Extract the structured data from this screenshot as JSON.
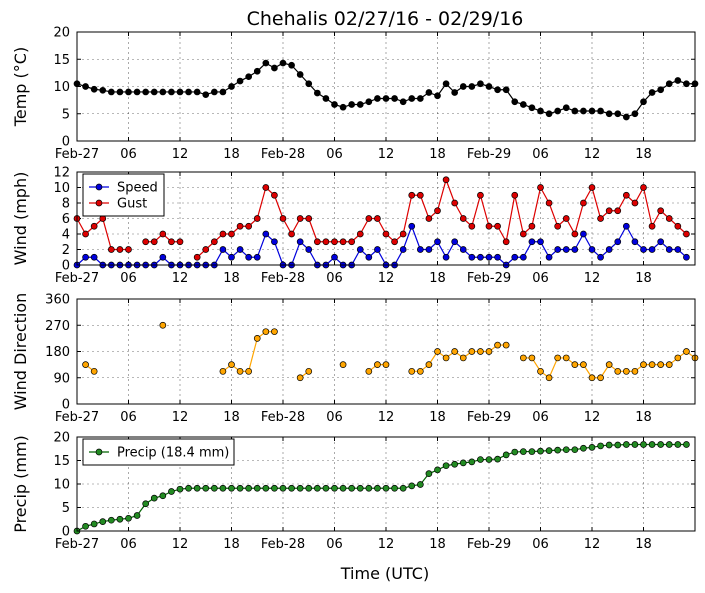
{
  "figure": {
    "title": "Chehalis 02/27/16 - 02/29/16",
    "xlabel": "Time (UTC)"
  },
  "chart_data": [
    {
      "id": "temp",
      "type": "line",
      "ylabel": "Temp (°C)",
      "ylim": [
        0,
        20
      ],
      "yticks": [
        0,
        5,
        10,
        15,
        20
      ],
      "grid": true,
      "legend": null,
      "x_hours_start": 0,
      "x_hours_step": 1,
      "xlim_hours": [
        0,
        72
      ],
      "xticks": [
        {
          "h": 0,
          "label": "Feb-27"
        },
        {
          "h": 6,
          "label": "06"
        },
        {
          "h": 12,
          "label": "12"
        },
        {
          "h": 18,
          "label": "18"
        },
        {
          "h": 24,
          "label": "Feb-28"
        },
        {
          "h": 30,
          "label": "06"
        },
        {
          "h": 36,
          "label": "12"
        },
        {
          "h": 42,
          "label": "18"
        },
        {
          "h": 48,
          "label": "Feb-29"
        },
        {
          "h": 54,
          "label": "06"
        },
        {
          "h": 60,
          "label": "12"
        },
        {
          "h": 66,
          "label": "18"
        }
      ],
      "series": [
        {
          "color": "#000000",
          "marker_fill": "#000000",
          "line": true,
          "values": [
            10.5,
            10,
            9.5,
            9.3,
            9,
            9,
            9,
            9,
            9,
            9,
            9,
            9,
            9,
            9,
            9,
            8.5,
            9,
            9,
            10,
            11,
            11.8,
            12.8,
            14.3,
            13.4,
            14.3,
            13.9,
            12.2,
            10.5,
            8.8,
            7.8,
            6.7,
            6.2,
            6.7,
            6.7,
            7.2,
            7.8,
            7.8,
            7.8,
            7.2,
            7.8,
            7.8,
            8.9,
            8.3,
            10.5,
            8.9,
            10,
            10,
            10.5,
            10,
            9.4,
            9.4,
            7.2,
            6.7,
            6.1,
            5.5,
            5,
            5.5,
            6.1,
            5.5,
            5.5,
            5.5,
            5.5,
            5,
            5,
            4.4,
            5,
            7.2,
            8.9,
            9.4,
            10.5,
            11.1,
            10.5,
            10.5
          ]
        }
      ]
    },
    {
      "id": "wind",
      "type": "line",
      "ylabel": "Wind (mph)",
      "ylim": [
        0,
        12
      ],
      "yticks": [
        0,
        2,
        4,
        6,
        8,
        10,
        12
      ],
      "grid": true,
      "legend": "top-left",
      "x_hours_start": 0,
      "x_hours_step": 1,
      "xlim_hours": [
        0,
        72
      ],
      "xticks": [
        {
          "h": 0,
          "label": "Feb-27"
        },
        {
          "h": 6,
          "label": "06"
        },
        {
          "h": 12,
          "label": "12"
        },
        {
          "h": 18,
          "label": "18"
        },
        {
          "h": 24,
          "label": "Feb-28"
        },
        {
          "h": 30,
          "label": "06"
        },
        {
          "h": 36,
          "label": "12"
        },
        {
          "h": 42,
          "label": "18"
        },
        {
          "h": 48,
          "label": "Feb-29"
        },
        {
          "h": 54,
          "label": "06"
        },
        {
          "h": 60,
          "label": "12"
        },
        {
          "h": 66,
          "label": "18"
        }
      ],
      "series": [
        {
          "name": "Speed",
          "color": "#0000dd",
          "marker_fill": "#0000dd",
          "line": true,
          "values": [
            0,
            1,
            1,
            0,
            0,
            0,
            0,
            0,
            0,
            0,
            1,
            0,
            0,
            0,
            0,
            0,
            0,
            2,
            1,
            2,
            1,
            1,
            4,
            3,
            0,
            0,
            3,
            2,
            0,
            0,
            1,
            0,
            0,
            2,
            1,
            2,
            0,
            0,
            2,
            5,
            2,
            2,
            3,
            1,
            3,
            2,
            1,
            1,
            1,
            1,
            0,
            1,
            1,
            3,
            3,
            1,
            2,
            2,
            2,
            4,
            2,
            1,
            2,
            3,
            5,
            3,
            2,
            2,
            3,
            2,
            2,
            1
          ]
        },
        {
          "name": "Gust",
          "color": "#dd0000",
          "marker_fill": "#dd0000",
          "line": true,
          "values": [
            6,
            4,
            5,
            6,
            2,
            2,
            2,
            null,
            3,
            3,
            4,
            3,
            3,
            null,
            1,
            2,
            3,
            4,
            4,
            5,
            5,
            6,
            10,
            9,
            6,
            4,
            6,
            6,
            3,
            3,
            3,
            3,
            3,
            4,
            6,
            6,
            4,
            3,
            4,
            9,
            9,
            6,
            7,
            11,
            8,
            6,
            5,
            9,
            5,
            5,
            3,
            9,
            4,
            5,
            10,
            8,
            5,
            6,
            4,
            8,
            10,
            6,
            7,
            7,
            9,
            8,
            10,
            5,
            7,
            6,
            5,
            4
          ]
        }
      ]
    },
    {
      "id": "direction",
      "type": "line",
      "ylabel": "Wind Direction",
      "ylim": [
        0,
        360
      ],
      "yticks": [
        0,
        90,
        180,
        270,
        360
      ],
      "grid": true,
      "legend": null,
      "x_hours_start": 0,
      "x_hours_step": 1,
      "xlim_hours": [
        0,
        72
      ],
      "xticks": [
        {
          "h": 0,
          "label": "Feb-27"
        },
        {
          "h": 6,
          "label": "06"
        },
        {
          "h": 12,
          "label": "12"
        },
        {
          "h": 18,
          "label": "18"
        },
        {
          "h": 24,
          "label": "Feb-28"
        },
        {
          "h": 30,
          "label": "06"
        },
        {
          "h": 36,
          "label": "12"
        },
        {
          "h": 42,
          "label": "18"
        },
        {
          "h": 48,
          "label": "Feb-29"
        },
        {
          "h": 54,
          "label": "06"
        },
        {
          "h": 60,
          "label": "12"
        },
        {
          "h": 66,
          "label": "18"
        }
      ],
      "series": [
        {
          "color": "#ffa500",
          "marker_fill": "#ffa500",
          "line": true,
          "values": [
            null,
            135,
            112,
            null,
            null,
            null,
            null,
            null,
            null,
            null,
            270,
            null,
            null,
            null,
            null,
            null,
            null,
            112,
            135,
            112,
            112,
            225,
            248,
            248,
            null,
            null,
            90,
            112,
            null,
            null,
            null,
            135,
            null,
            null,
            112,
            135,
            135,
            null,
            null,
            112,
            112,
            135,
            180,
            158,
            180,
            158,
            180,
            180,
            180,
            202,
            202,
            null,
            158,
            158,
            112,
            90,
            158,
            158,
            135,
            135,
            90,
            90,
            135,
            112,
            112,
            112,
            135,
            135,
            135,
            135,
            158,
            180,
            158
          ]
        }
      ]
    },
    {
      "id": "precip",
      "type": "line",
      "ylabel": "Precip (mm)",
      "ylim": [
        0,
        20
      ],
      "yticks": [
        0,
        5,
        10,
        15,
        20
      ],
      "grid": true,
      "legend": "top-left",
      "x_hours_start": 0,
      "x_hours_step": 1,
      "xlim_hours": [
        0,
        72
      ],
      "xticks": [
        {
          "h": 0,
          "label": "Feb-27"
        },
        {
          "h": 6,
          "label": "06"
        },
        {
          "h": 12,
          "label": "12"
        },
        {
          "h": 18,
          "label": "18"
        },
        {
          "h": 24,
          "label": "Feb-28"
        },
        {
          "h": 30,
          "label": "06"
        },
        {
          "h": 36,
          "label": "12"
        },
        {
          "h": 42,
          "label": "18"
        },
        {
          "h": 48,
          "label": "Feb-29"
        },
        {
          "h": 54,
          "label": "06"
        },
        {
          "h": 60,
          "label": "12"
        },
        {
          "h": 66,
          "label": "18"
        }
      ],
      "series": [
        {
          "name": "Precip (18.4 mm)",
          "color": "#006400",
          "marker_fill": "#228b22",
          "line": true,
          "values": [
            0,
            1,
            1.5,
            2,
            2.3,
            2.5,
            2.7,
            3.3,
            5.8,
            7,
            7.5,
            8.4,
            8.9,
            9.1,
            9.1,
            9.1,
            9.1,
            9.1,
            9.1,
            9.1,
            9.1,
            9.1,
            9.1,
            9.1,
            9.1,
            9.1,
            9.1,
            9.1,
            9.1,
            9.1,
            9.1,
            9.1,
            9.1,
            9.1,
            9.1,
            9.1,
            9.1,
            9.1,
            9.1,
            9.6,
            9.9,
            12.2,
            13,
            13.9,
            14.2,
            14.5,
            14.7,
            15.2,
            15.2,
            15.3,
            16.2,
            16.8,
            16.9,
            16.9,
            17,
            17.1,
            17.2,
            17.3,
            17.3,
            17.6,
            17.8,
            18.1,
            18.3,
            18.3,
            18.4,
            18.4,
            18.4,
            18.4,
            18.4,
            18.4,
            18.4,
            18.4
          ]
        }
      ]
    }
  ]
}
